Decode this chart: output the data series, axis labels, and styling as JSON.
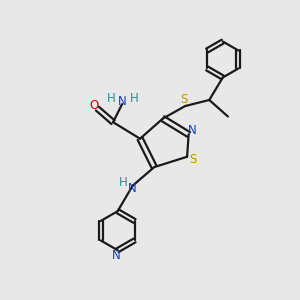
{
  "bg_color": "#e8e8e8",
  "bond_color": "#1a1a1a",
  "N_color": "#1040cc",
  "S_color": "#b8960c",
  "O_color": "#cc0000",
  "H_color": "#2a9090",
  "line_width": 1.6,
  "figsize": [
    3.0,
    3.0
  ],
  "dpi": 100,
  "xlim": [
    0,
    10
  ],
  "ylim": [
    0,
    10
  ]
}
